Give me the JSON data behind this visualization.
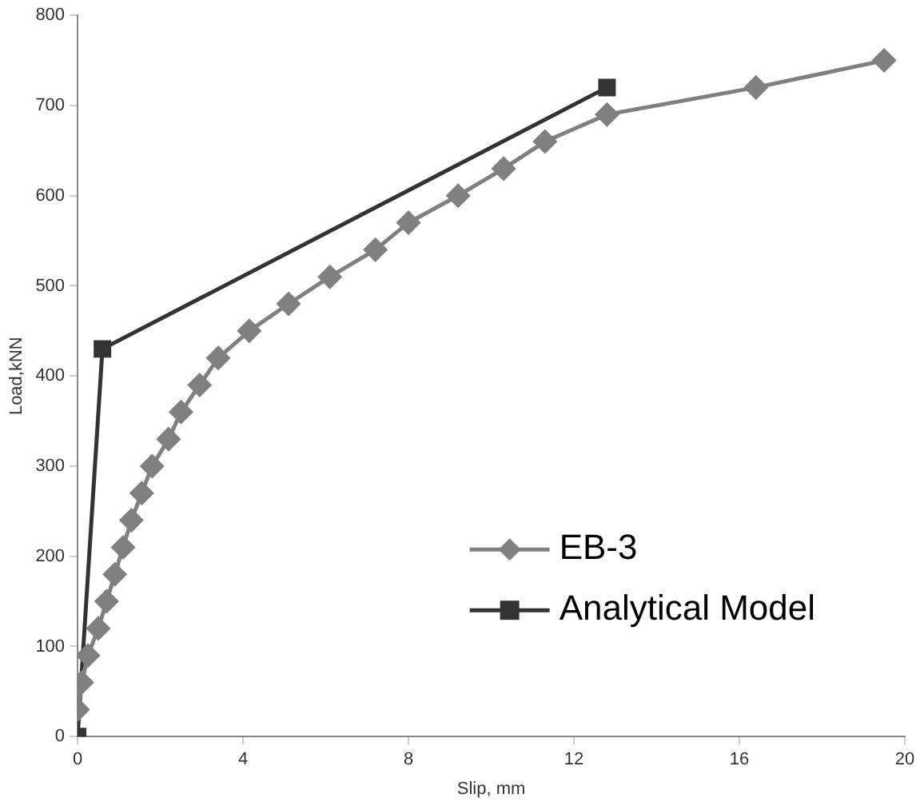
{
  "chart_data": {
    "type": "line",
    "xlabel": "Slip, mm",
    "ylabel": "Load,kNN",
    "xlim": [
      0,
      20
    ],
    "xticks": [
      0,
      4,
      8,
      12,
      16,
      20
    ],
    "ylim": [
      0,
      800
    ],
    "yticks": [
      0,
      100,
      200,
      300,
      400,
      500,
      600,
      700,
      800
    ],
    "grid": false,
    "legend": "bottom right",
    "line_style": "solid",
    "series": [
      {
        "name": "EB-3",
        "color": "#808080",
        "marker": "diamond",
        "x": [
          0,
          0.1,
          0.25,
          0.5,
          0.7,
          0.9,
          1.1,
          1.3,
          1.55,
          1.8,
          2.2,
          2.5,
          2.95,
          3.4,
          4.15,
          5.1,
          6.1,
          7.2,
          8.0,
          9.2,
          10.3,
          11.3,
          12.8,
          16.4,
          19.5
        ],
        "values": [
          30,
          60,
          90,
          120,
          150,
          180,
          210,
          240,
          270,
          300,
          330,
          360,
          390,
          420,
          450,
          480,
          510,
          540,
          570,
          600,
          630,
          660,
          690,
          720,
          750
        ]
      },
      {
        "name": "Analytical Model",
        "color": "#333333",
        "marker": "square",
        "x": [
          0,
          0.6,
          12.8
        ],
        "values": [
          0,
          430,
          720
        ]
      }
    ]
  }
}
